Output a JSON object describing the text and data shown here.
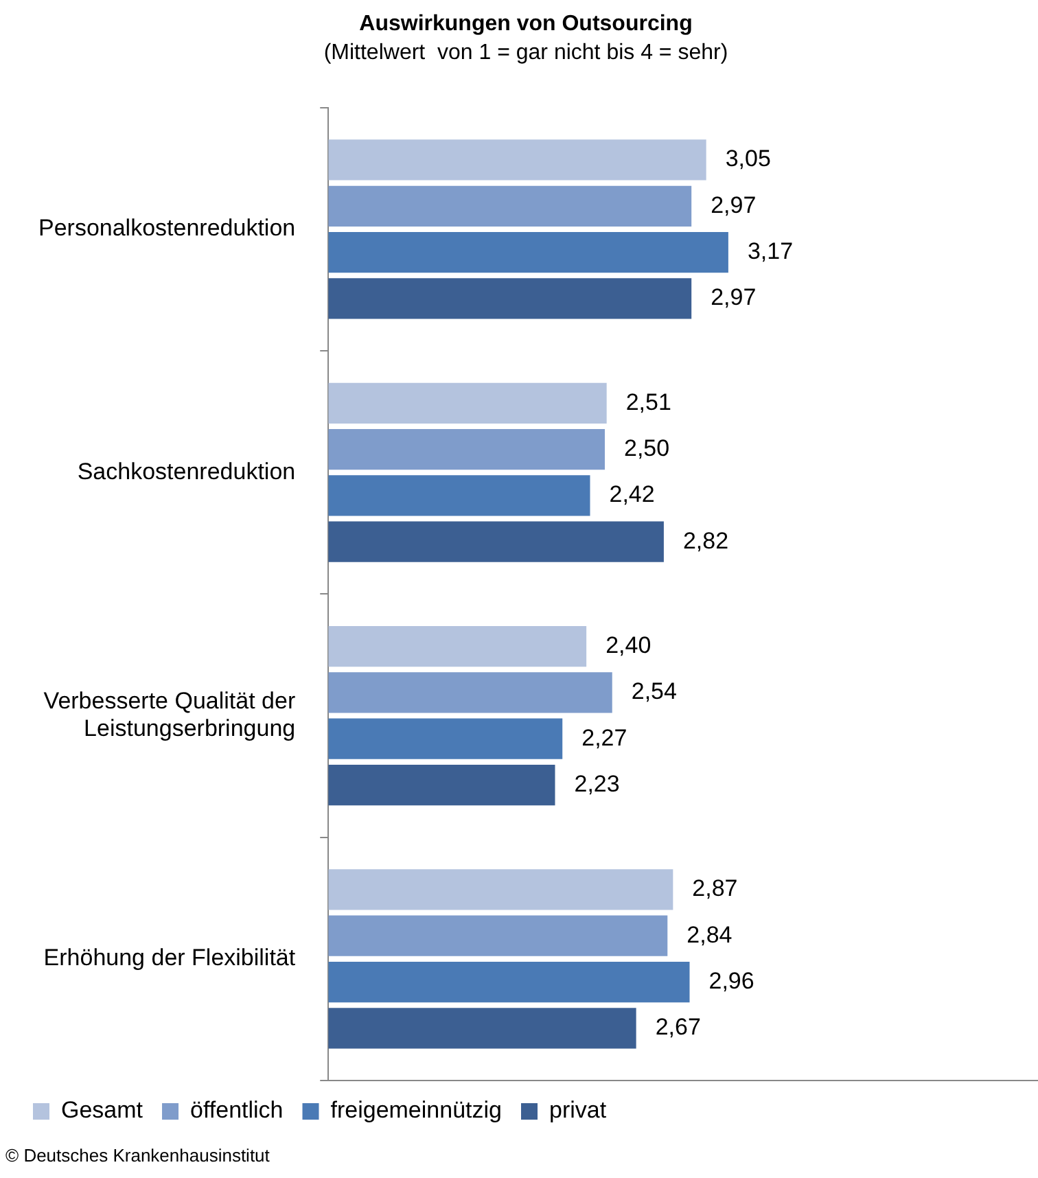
{
  "chart_data": {
    "type": "bar",
    "orientation": "horizontal",
    "title": "Auswirkungen von Outsourcing",
    "subtitle": "(Mittelwert  von 1 = gar nicht bis 4 = sehr)",
    "categories": [
      "Personalkostenreduktion",
      "Sachkostenreduktion",
      "Verbesserte Qualität der Leistungserbringung",
      "Erhöhung der Flexibilität"
    ],
    "series": [
      {
        "name": "Gesamt",
        "color": "#b4c3de",
        "values": [
          3.05,
          2.51,
          2.4,
          2.87
        ],
        "value_labels": [
          "3,05",
          "2,51",
          "2,40",
          "2,87"
        ]
      },
      {
        "name": "öffentlich",
        "color": "#7f9ccb",
        "values": [
          2.97,
          2.5,
          2.54,
          2.84
        ],
        "value_labels": [
          "2,97",
          "2,50",
          "2,54",
          "2,84"
        ]
      },
      {
        "name": "freigemeinnützig",
        "color": "#4a7ab5",
        "values": [
          3.17,
          2.42,
          2.27,
          2.96
        ],
        "value_labels": [
          "3,17",
          "2,42",
          "2,27",
          "2,96"
        ]
      },
      {
        "name": "privat",
        "color": "#3c5f92",
        "values": [
          2.97,
          2.82,
          2.23,
          2.67
        ],
        "value_labels": [
          "2,97",
          "2,82",
          "2,23",
          "2,67"
        ]
      }
    ],
    "xlim": [
      1,
      4.85
    ],
    "tick_labels": "y",
    "legend": "bottom left",
    "grid": false,
    "annotations": [
      "© Deutsches Krankenhausinstitut"
    ]
  }
}
